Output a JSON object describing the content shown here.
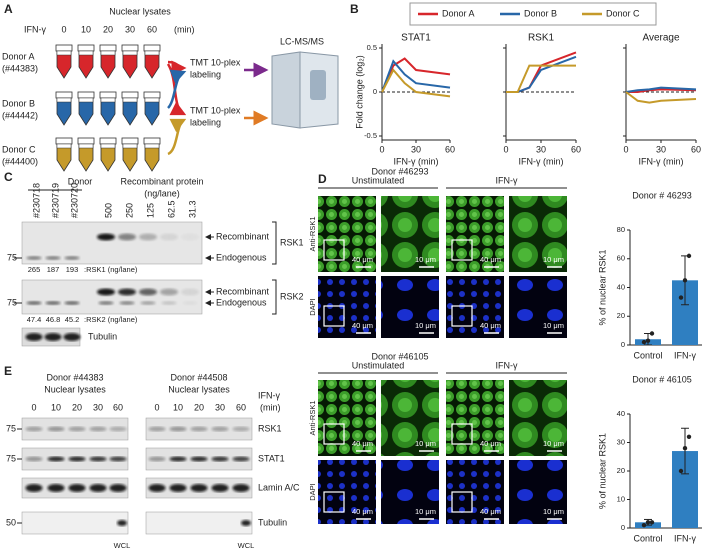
{
  "panel_labels": [
    "A",
    "B",
    "C",
    "D",
    "E"
  ],
  "a": {
    "header": "Nuclear lysates",
    "ifn_label": "IFN-γ",
    "times": [
      "0",
      "10",
      "20",
      "30",
      "60"
    ],
    "unit": "(min)",
    "donors": [
      {
        "name": "Donor A",
        "id": "(#44383)",
        "color": "#d7262b"
      },
      {
        "name": "Donor B",
        "id": "(#44442)",
        "color": "#2867a8"
      },
      {
        "name": "Donor C",
        "id": "(#44400)",
        "color": "#c59a2a"
      }
    ],
    "labeling": [
      {
        "lines": [
          "TMT 10-plex",
          "labeling"
        ],
        "color": "#7b2a8c"
      },
      {
        "lines": [
          "TMT 10-plex",
          "labeling"
        ],
        "color": "#e07b24"
      }
    ],
    "instrument": "LC-MS/MS"
  },
  "chart_data": [
    {
      "type": "line",
      "title": "STAT1",
      "ylabel": "Fold change (log₂)",
      "xlabel": "IFN-γ (min)",
      "x": [
        0,
        10,
        20,
        30,
        60
      ],
      "xlim": [
        0,
        60
      ],
      "xticks": [
        0,
        30,
        60
      ],
      "ylim": [
        -0.5,
        0.5
      ],
      "yticks": [
        -0.5,
        0,
        0.5
      ],
      "series": [
        {
          "name": "Donor A",
          "color": "#d7262b",
          "values": [
            0,
            0.3,
            0.38,
            0.25,
            0.2
          ]
        },
        {
          "name": "Donor B",
          "color": "#2867a8",
          "values": [
            0,
            0.35,
            0.2,
            0.1,
            0.05
          ]
        },
        {
          "name": "Donor C",
          "color": "#c59a2a",
          "values": [
            0,
            0.25,
            0.1,
            0,
            -0.05
          ]
        }
      ]
    },
    {
      "type": "line",
      "title": "RSK1",
      "xlabel": "IFN-γ (min)",
      "x": [
        0,
        10,
        20,
        30,
        60
      ],
      "xlim": [
        0,
        60
      ],
      "xticks": [
        0,
        30,
        60
      ],
      "ylim": [
        -0.5,
        0.5
      ],
      "yticks": [
        -0.5,
        0,
        0.5
      ],
      "series": [
        {
          "color": "#d7262b",
          "values": [
            0,
            0,
            0.05,
            0.3,
            0.45
          ]
        },
        {
          "color": "#2867a8",
          "values": [
            0,
            0,
            0.05,
            0.25,
            0.4
          ]
        },
        {
          "color": "#c59a2a",
          "values": [
            0,
            0,
            0.3,
            0.3,
            0.3
          ]
        }
      ]
    },
    {
      "type": "line",
      "title": "Average",
      "xlabel": "IFN-γ (min)",
      "x": [
        0,
        10,
        20,
        30,
        60
      ],
      "xlim": [
        0,
        60
      ],
      "xticks": [
        0,
        30,
        60
      ],
      "ylim": [
        -0.5,
        0.5
      ],
      "yticks": [
        -0.5,
        0,
        0.5
      ],
      "series": [
        {
          "color": "#d7262b",
          "values": [
            0,
            0,
            0.02,
            0.03,
            0.02
          ]
        },
        {
          "color": "#2867a8",
          "values": [
            0,
            0.02,
            0.03,
            0.05,
            0.03
          ]
        },
        {
          "color": "#c59a2a",
          "values": [
            0,
            -0.1,
            -0.12,
            -0.1,
            -0.08
          ]
        }
      ]
    },
    {
      "type": "bar",
      "title": "Donor # 46293",
      "ylabel": "% of nuclear RSK1",
      "categories": [
        "Control",
        "IFN-γ"
      ],
      "values": [
        4,
        45
      ],
      "errors": [
        4,
        17
      ],
      "points": [
        [
          2,
          3,
          8
        ],
        [
          33,
          45,
          62
        ]
      ],
      "color": "#2f7fc1",
      "ylim": [
        0,
        80
      ],
      "yticks": [
        0,
        20,
        40,
        60,
        80
      ]
    },
    {
      "type": "bar",
      "title": "Donor # 46105",
      "ylabel": "% of nuclear RSK1",
      "categories": [
        "Control",
        "IFN-γ"
      ],
      "values": [
        2,
        27
      ],
      "errors": [
        1,
        8
      ],
      "points": [
        [
          1,
          2,
          2
        ],
        [
          20,
          28,
          32
        ]
      ],
      "color": "#2f7fc1",
      "ylim": [
        0,
        40
      ],
      "yticks": [
        0,
        10,
        20,
        30,
        40
      ]
    }
  ],
  "c": {
    "donor_header": "Donor",
    "lanes_donor": [
      "#230718",
      "#230719",
      "#230720"
    ],
    "recomb_header": [
      "Recombinant protein",
      "(ng/lane)"
    ],
    "lanes_recomb": [
      "500",
      "250",
      "125",
      "62.5",
      "31.3"
    ],
    "blots": [
      {
        "marker": "75",
        "arrows": [
          "Recombinant",
          "Endogenous"
        ],
        "name": "RSK1",
        "amounts": [
          "265",
          "187",
          "193"
        ],
        "amount_label": ":RSK1 (ng/lane)"
      },
      {
        "marker": "75",
        "arrows": [
          "Recombinant",
          "Endogenous"
        ],
        "name": "RSK2",
        "amounts": [
          "47.4",
          "46.8",
          "45.2"
        ],
        "amount_label": ":RSK2 (ng/lane)"
      },
      {
        "name": "Tubulin"
      }
    ]
  },
  "d": [
    {
      "donor": "Donor #46293",
      "conditions": [
        "Unstimulated",
        "IFN-γ"
      ],
      "stains": [
        "Anti-RSK1",
        "DAPI"
      ],
      "scale_bars": [
        [
          "40 μm",
          "10 μm",
          "40 μm",
          "10 μm"
        ],
        [
          "40 μm",
          "10 μm",
          "40 μm",
          "10 μm"
        ]
      ]
    },
    {
      "donor": "Donor #46105",
      "conditions": [
        "Unstimulated",
        "IFN-γ"
      ],
      "stains": [
        "Anti-RSK1",
        "DAPI"
      ],
      "scale_bars": [
        [
          "40 μm",
          "10 μm",
          "40 μm",
          "10 μm"
        ],
        [
          "40 μm",
          "10 μm",
          "40 μm",
          "10 μm"
        ]
      ]
    }
  ],
  "e": {
    "groups": [
      {
        "donor": "Donor #44383",
        "sub": "Nuclear lysates",
        "times": [
          "0",
          "10",
          "20",
          "30",
          "60"
        ],
        "wcl": "WCL"
      },
      {
        "donor": "Donor #44508",
        "sub": "Nuclear lysates",
        "times": [
          "0",
          "10",
          "20",
          "30",
          "60"
        ],
        "wcl": "WCL"
      }
    ],
    "ifn": [
      "IFN-γ",
      "(min)"
    ],
    "blots": [
      {
        "marker": "75",
        "name": "RSK1"
      },
      {
        "marker": "75",
        "name": "STAT1"
      },
      {
        "name": "Lamin A/C"
      },
      {
        "marker": "50",
        "name": "Tubulin"
      }
    ]
  }
}
